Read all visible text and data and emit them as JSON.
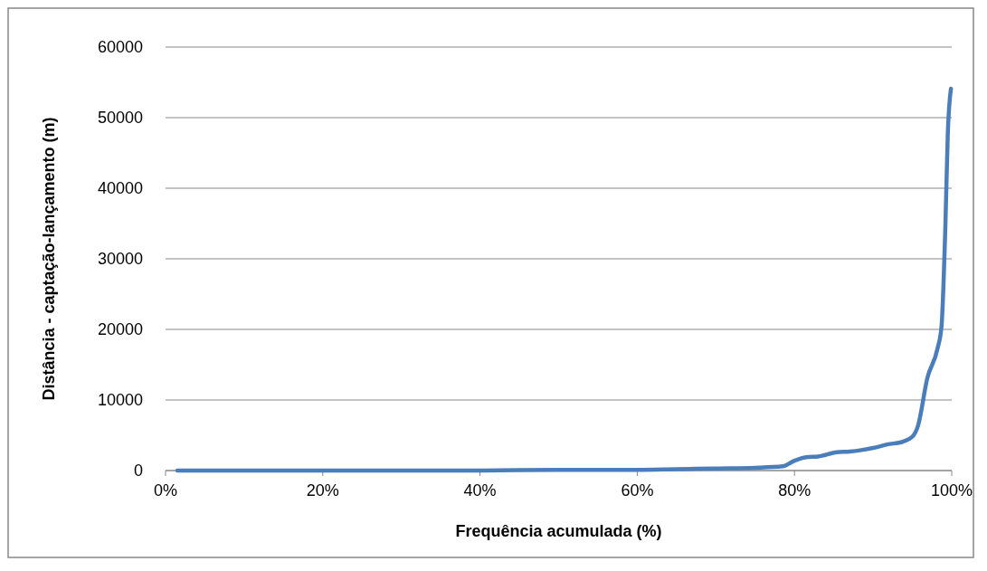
{
  "chart_data": {
    "type": "line",
    "xlabel": "Frequência acumulada (%)",
    "ylabel": "Distância - captação-lançamento (m)",
    "series": [
      {
        "color": "#4a7ebb",
        "x": [
          1.5,
          10,
          20,
          30,
          40,
          50,
          60,
          65,
          70,
          75,
          78.5,
          80,
          81.5,
          83,
          85.4,
          87,
          88.5,
          90,
          91.8,
          93.8,
          95,
          95.7,
          96.9,
          98.2,
          98.7,
          99.2,
          99.5,
          99.9
        ],
        "values": [
          0,
          0,
          0,
          0,
          0,
          100,
          100,
          200,
          300,
          400,
          600,
          1400,
          1900,
          2000,
          2600,
          2700,
          2900,
          3200,
          3700,
          4100,
          4800,
          6300,
          13100,
          17300,
          20400,
          34900,
          47700,
          54100
        ]
      }
    ],
    "xlim": [
      0,
      100
    ],
    "xticks": [
      {
        "value": 0,
        "label": "0%"
      },
      {
        "value": 20,
        "label": "20%"
      },
      {
        "value": 40,
        "label": "40%"
      },
      {
        "value": 60,
        "label": "60%"
      },
      {
        "value": 80,
        "label": "80%"
      },
      {
        "value": 100,
        "label": "100%"
      }
    ],
    "ylim": [
      0,
      60000
    ],
    "yticks": [
      0,
      10000,
      20000,
      30000,
      40000,
      50000,
      60000
    ],
    "grid": "y",
    "marker": "none",
    "line_style": "solid"
  }
}
